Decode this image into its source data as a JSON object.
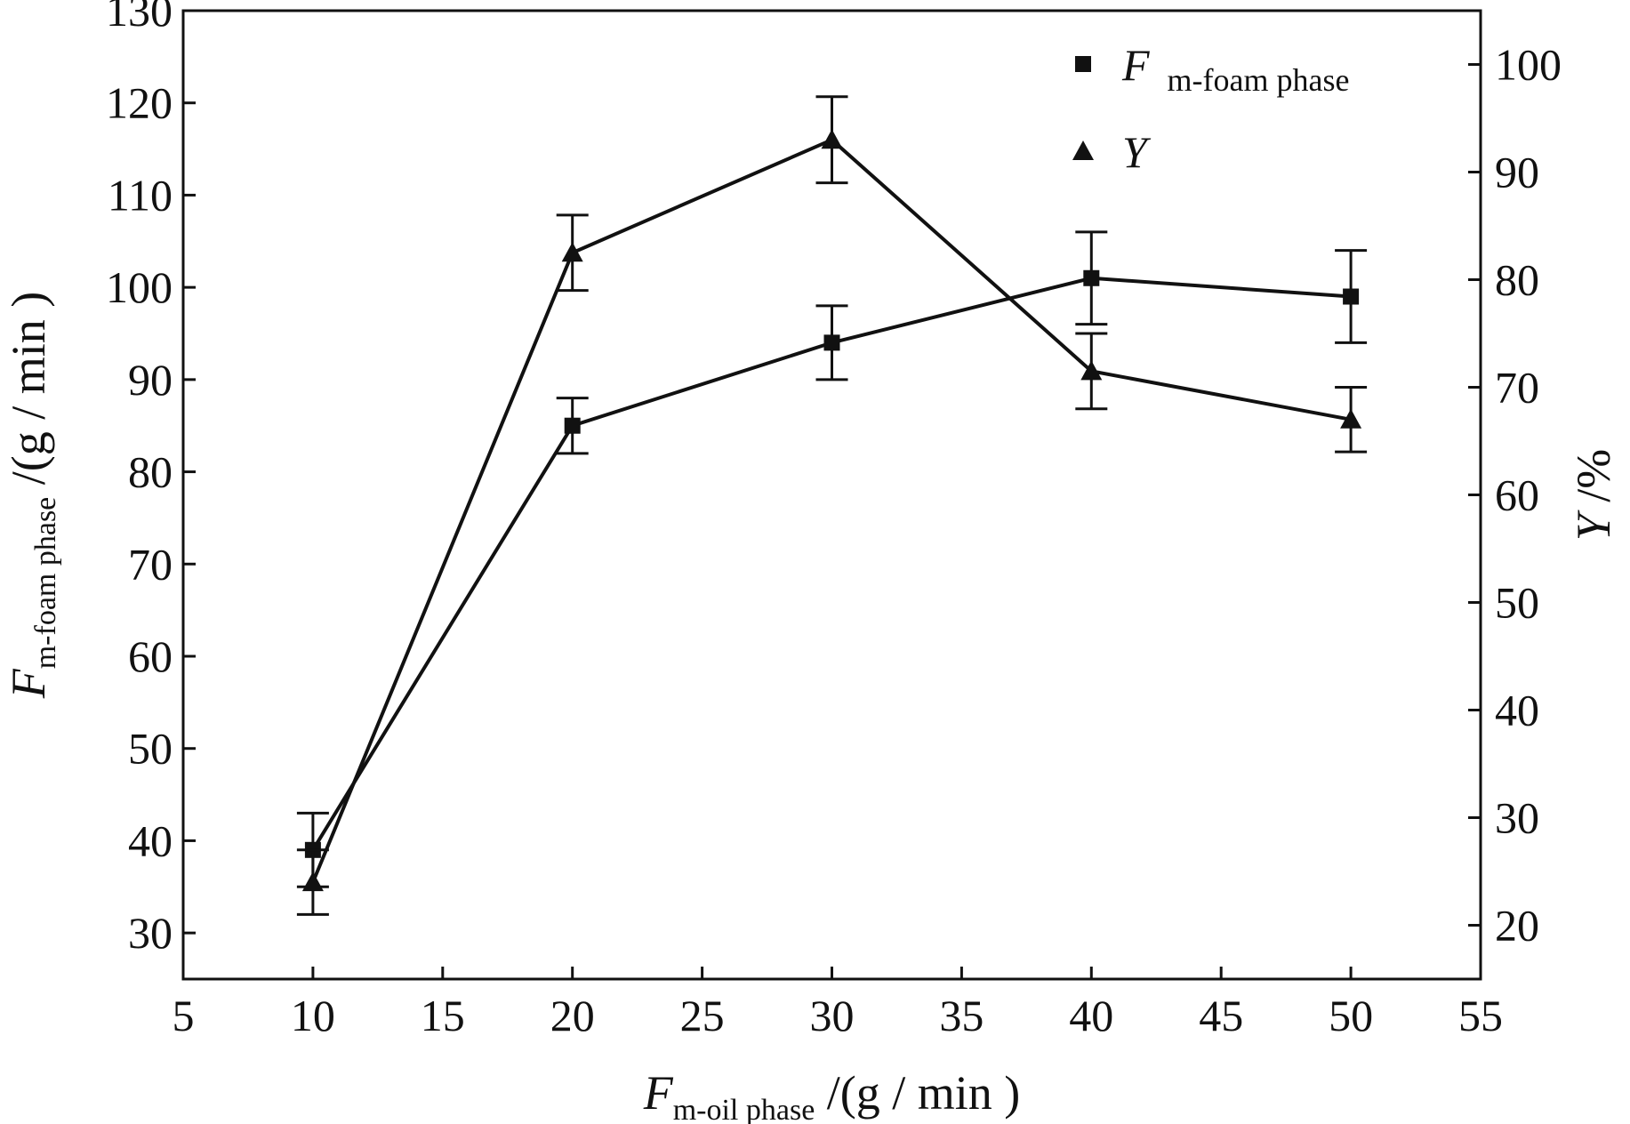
{
  "chart_data": {
    "type": "line",
    "x": [
      10,
      20,
      30,
      40,
      50
    ],
    "xlim": [
      5,
      55
    ],
    "xticks": [
      5,
      10,
      15,
      20,
      25,
      30,
      35,
      40,
      45,
      50,
      55
    ],
    "xlabel": {
      "symbol": "F",
      "subscript": "m-oil phase",
      "unit": " /(g / min )"
    },
    "y_left": {
      "lim": [
        25,
        130
      ],
      "ticks": [
        30,
        40,
        50,
        60,
        70,
        80,
        90,
        100,
        110,
        120,
        130
      ],
      "label": {
        "symbol": "F",
        "subscript": "m-foam phase",
        "unit": " /(g / min )"
      }
    },
    "y_right": {
      "lim": [
        15,
        105
      ],
      "ticks": [
        20,
        30,
        40,
        50,
        60,
        70,
        80,
        90,
        100
      ],
      "label": {
        "symbol": "Y",
        "unit": " /%"
      }
    },
    "series": [
      {
        "name": "F m-foam phase",
        "legend_symbol": "F",
        "legend_subscript": "m-foam phase",
        "axis": "left",
        "marker": "square",
        "values": [
          39,
          85,
          94,
          101,
          99
        ],
        "errors": [
          4,
          3,
          4,
          5,
          5
        ]
      },
      {
        "name": "Y",
        "legend_symbol": "Y",
        "axis": "right",
        "marker": "triangle",
        "values": [
          24,
          82.5,
          93,
          71.5,
          67
        ],
        "errors": [
          3,
          3.5,
          4,
          3.5,
          3
        ]
      }
    ],
    "legend_position": "top-right"
  }
}
